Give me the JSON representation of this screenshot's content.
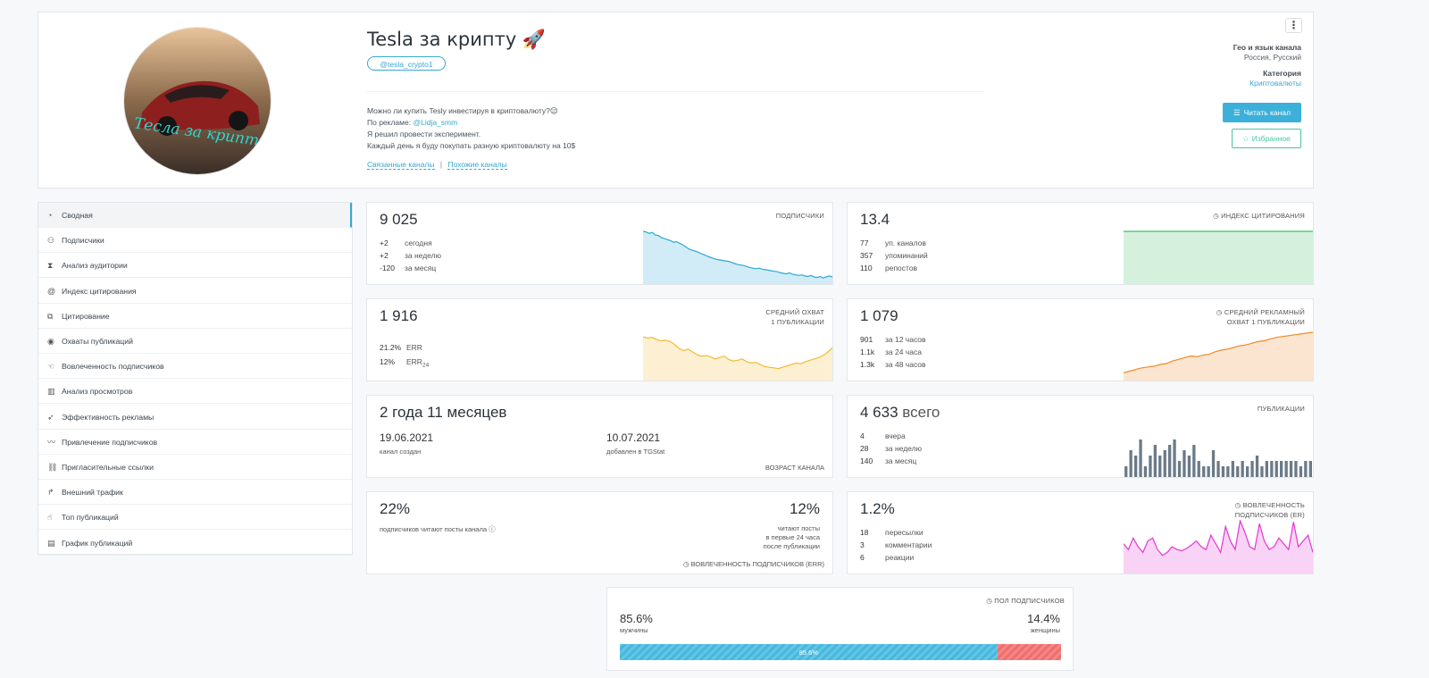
{
  "header": {
    "title": "Tesla за крипту 🚀",
    "username": "@tesla_crypto1",
    "avatar_text": "Тесла за крипту",
    "description": {
      "line1": "Можно ли купить Tesly инвестируя в криптовалюту?😉",
      "line2_prefix": "По рекламе:",
      "line2_link": "@Lidja_smm",
      "line3": "Я решил провести эксперимент.",
      "line4": "Каждый день я буду покупать разную криптовалюту на 10$"
    },
    "links": {
      "related": "Связанные каналы",
      "separator": "|",
      "similar": "Похожие каналы"
    },
    "kebab": "⋮",
    "geo_label": "Гео и язык канала",
    "geo_value": "Россия, Русский",
    "category_label": "Категория",
    "category_value": "Криптовалюты",
    "read_button": "Читать канал",
    "fav_button": "Избранное"
  },
  "sidebar": {
    "items": [
      {
        "label": "Сводная",
        "icon": "dashboard-icon"
      },
      {
        "label": "Подписчики",
        "icon": "users-icon"
      },
      {
        "label": "Анализ аудитории",
        "icon": "hourglass-icon"
      },
      {
        "label": "Индекс цитирования",
        "icon": "at-icon"
      },
      {
        "label": "Цитирование",
        "icon": "copy-icon"
      },
      {
        "label": "Охваты публикаций",
        "icon": "eye-icon"
      },
      {
        "label": "Вовлеченность подписчиков",
        "icon": "hand-icon"
      },
      {
        "label": "Анализ просмотров",
        "icon": "bar-chart-icon"
      },
      {
        "label": "Эффективность рекламы",
        "icon": "rocket-icon"
      },
      {
        "label": "Привлечение подписчиков",
        "icon": "trend-icon"
      },
      {
        "label": "Пригласительные ссылки",
        "icon": "link-icon"
      },
      {
        "label": "Внешний трафик",
        "icon": "share-icon"
      },
      {
        "label": "Топ публикаций",
        "icon": "thumbs-up-icon"
      },
      {
        "label": "График публикаций",
        "icon": "calendar-icon"
      }
    ]
  },
  "subscribers": {
    "value": "9 025",
    "label": "ПОДПИСЧИКИ",
    "rows": [
      {
        "n": "+2",
        "t": "сегодня"
      },
      {
        "n": "+2",
        "t": "за неделю"
      },
      {
        "n": "-120",
        "t": "за месяц"
      }
    ]
  },
  "citation": {
    "value": "13.4",
    "label": "ИНДЕКС ЦИТИРОВАНИЯ",
    "rows": [
      {
        "n": "77",
        "t": "уп. каналов"
      },
      {
        "n": "357",
        "t": "упоминаний"
      },
      {
        "n": "110",
        "t": "репостов"
      }
    ]
  },
  "reach": {
    "value": "1 916",
    "label1": "СРЕДНИЙ ОХВАТ",
    "label2": "1 ПУБЛИКАЦИИ",
    "err1_val": "21.2%",
    "err1_lbl": "ERR",
    "err2_val": "12%",
    "err2_lbl": "ERR",
    "err2_sub": "24"
  },
  "ad_reach": {
    "value": "1 079",
    "label1": "СРЕДНИЙ РЕКЛАМНЫЙ",
    "label2": "ОХВАТ 1 ПУБЛИКАЦИИ",
    "rows": [
      {
        "n": "901",
        "t": "за 12 часов"
      },
      {
        "n": "1.1k",
        "t": "за 24 часа"
      },
      {
        "n": "1.3k",
        "t": "за 48 часов"
      }
    ]
  },
  "age": {
    "value": "2 года 11 месяцев",
    "created_date": "19.06.2021",
    "created_lbl": "канал создан",
    "added_date": "10.07.2021",
    "added_lbl": "добавлен в TGStat",
    "label": "ВОЗРАСТ КАНАЛА"
  },
  "posts": {
    "value": "4 633",
    "value_suffix": "всего",
    "label": "ПУБЛИКАЦИИ",
    "rows": [
      {
        "n": "4",
        "t": "вчера"
      },
      {
        "n": "28",
        "t": "за неделю"
      },
      {
        "n": "140",
        "t": "за месяц"
      }
    ]
  },
  "err_card": {
    "left_val": "22%",
    "left_lbl": "подписчиков читают посты канала",
    "right_val": "12%",
    "right_l1": "читают посты",
    "right_l2": "в первые 24 часа",
    "right_l3": "после публикации",
    "label": "ВОВЛЕЧЕННОСТЬ ПОДПИСЧИКОВ (ERR)"
  },
  "er_card": {
    "value": "1.2%",
    "label1": "ВОВЛЕЧЕННОСТЬ",
    "label2": "ПОДПИСЧИКОВ (ER)",
    "rows": [
      {
        "n": "18",
        "t": "пересылки"
      },
      {
        "n": "3",
        "t": "комментарии"
      },
      {
        "n": "6",
        "t": "реакции"
      }
    ]
  },
  "gender": {
    "label": "ПОЛ ПОДПИСЧИКОВ",
    "male_val": "85.6%",
    "male_lbl": "мужчины",
    "female_val": "14.4%",
    "female_lbl": "женщины",
    "bar_text": "85.6%",
    "male_fraction": 0.856,
    "male_color": "#44b8de",
    "female_color": "#f06d6d"
  },
  "chart_data": [
    {
      "type": "area",
      "id": "subscribers-chart",
      "color": "#2ea8d6",
      "values": [
        100,
        99,
        96,
        98,
        93,
        92,
        88,
        86,
        84,
        82,
        79,
        80,
        77,
        74,
        70,
        66,
        64,
        62,
        60,
        57,
        55,
        52,
        50,
        48,
        46,
        45,
        44,
        43,
        42,
        40,
        38,
        36,
        35,
        34,
        32,
        30,
        29,
        28,
        29,
        27,
        26,
        25,
        24,
        23,
        22,
        20,
        19,
        18,
        20,
        17,
        16,
        15,
        16,
        14,
        13,
        15,
        12,
        11,
        13,
        10,
        12,
        14,
        12
      ]
    },
    {
      "type": "area",
      "id": "citation-chart",
      "color": "#3fbf63",
      "values": [
        100,
        100,
        100,
        100,
        100,
        100,
        100,
        100,
        100,
        100
      ]
    },
    {
      "type": "area",
      "id": "reach-chart",
      "color": "#f4bb32",
      "values": [
        62,
        60,
        61,
        58,
        56,
        57,
        55,
        51,
        45,
        42,
        44,
        40,
        36,
        34,
        35,
        33,
        30,
        32,
        34,
        29,
        27,
        28,
        30,
        26,
        24,
        25,
        22,
        19,
        18,
        17,
        16,
        18,
        20,
        22,
        24,
        23,
        26,
        28,
        30,
        32,
        35,
        40,
        46
      ]
    },
    {
      "type": "area",
      "id": "ad-reach-chart",
      "color": "#f08a2a",
      "values": [
        8,
        10,
        12,
        14,
        15,
        16,
        18,
        19,
        22,
        24,
        26,
        28,
        27,
        29,
        30,
        33,
        35,
        36,
        38,
        40,
        41,
        43,
        45,
        46,
        48,
        50,
        51,
        52,
        53,
        54,
        55,
        56
      ]
    },
    {
      "type": "bar",
      "id": "posts-chart",
      "color": "#6b7a88",
      "values": [
        2,
        5,
        4,
        7,
        2,
        4,
        6,
        4,
        5,
        6,
        7,
        3,
        5,
        4,
        6,
        3,
        2,
        2,
        5,
        3,
        2,
        2,
        3,
        2,
        3,
        2,
        3,
        4,
        2,
        3,
        3,
        3,
        3,
        3,
        3,
        3,
        2,
        3,
        3
      ]
    },
    {
      "type": "area",
      "id": "er-chart",
      "color": "#e535d2",
      "values": [
        50,
        40,
        60,
        45,
        35,
        55,
        60,
        40,
        30,
        35,
        45,
        40,
        38,
        42,
        48,
        55,
        45,
        40,
        65,
        50,
        35,
        80,
        55,
        40,
        90,
        70,
        45,
        40,
        85,
        55,
        40,
        45,
        60,
        50,
        40,
        88,
        45,
        55,
        65,
        35
      ]
    }
  ]
}
